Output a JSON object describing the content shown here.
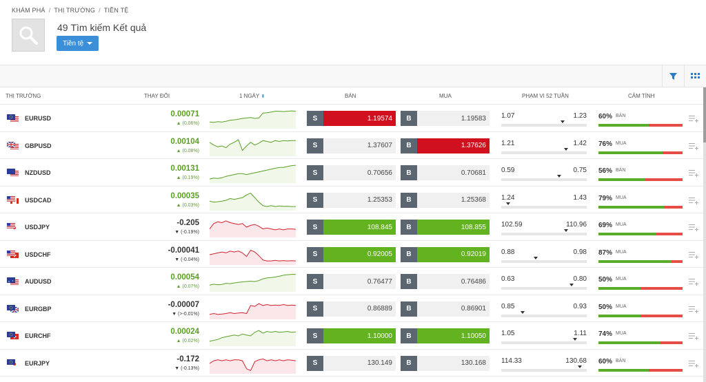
{
  "breadcrumb": [
    "KHÁM PHÁ",
    "THỊ TRƯỜNG",
    "TIỀN TỆ"
  ],
  "breadcrumb_sep": "/",
  "results": {
    "count": "49",
    "text": "Tìm kiếm Kết quả"
  },
  "filter_button": "Tiền tệ",
  "columns": {
    "market": "THỊ TRƯỜNG",
    "change": "THAY ĐỔI",
    "period": "1 NGÀY",
    "sell": "BÁN",
    "buy": "MUA",
    "range": "PHẠM VI 52 TUẦN",
    "sentiment": "CẢM TÍNH"
  },
  "sell_letter": "S",
  "buy_letter": "B",
  "colors": {
    "up": "#5aa024",
    "down": "#d3202e",
    "price_red": "#d0101e",
    "price_green": "#63b320",
    "accent": "#3b8fd8"
  },
  "rows": [
    {
      "symbol": "EURUSD",
      "flag": "eu-us",
      "change": "0.00071",
      "pct": "▲ (0.06%)",
      "dir": "up",
      "sell": "1.19574",
      "sell_state": "red",
      "buy": "1.19583",
      "buy_state": "",
      "low": "1.07",
      "high": "1.23",
      "range_pos": 0.72,
      "sentiment": "60%",
      "sentiment_label": "BÁN",
      "sentiment_fill": 0.6,
      "spark": [
        0.7,
        0.72,
        0.68,
        0.7,
        0.66,
        0.6,
        0.58,
        0.55,
        0.5,
        0.48,
        0.45,
        0.5,
        0.48,
        0.2,
        0.18,
        0.15,
        0.1,
        0.1,
        0.12,
        0.1,
        0.08,
        0.1
      ]
    },
    {
      "symbol": "GBPUSD",
      "flag": "gb-us",
      "change": "0.00104",
      "pct": "▲ (0.08%)",
      "dir": "up",
      "sell": "1.37607",
      "sell_state": "",
      "buy": "1.37626",
      "buy_state": "red",
      "low": "1.21",
      "high": "1.42",
      "range_pos": 0.76,
      "sentiment": "76%",
      "sentiment_label": "MUA",
      "sentiment_fill": 0.76,
      "spark": [
        0.3,
        0.45,
        0.55,
        0.5,
        0.6,
        0.4,
        0.3,
        0.15,
        0.75,
        0.5,
        0.3,
        0.45,
        0.35,
        0.2,
        0.25,
        0.3,
        0.2,
        0.25,
        0.2,
        0.22,
        0.2,
        0.2
      ]
    },
    {
      "symbol": "NZDUSD",
      "flag": "nz-us",
      "change": "0.00131",
      "pct": "▲ (0.19%)",
      "dir": "up",
      "sell": "0.70656",
      "sell_state": "",
      "buy": "0.70681",
      "buy_state": "",
      "low": "0.59",
      "high": "0.75",
      "range_pos": 0.68,
      "sentiment": "56%",
      "sentiment_label": "BÁN",
      "sentiment_fill": 0.56,
      "spark": [
        0.85,
        0.8,
        0.82,
        0.78,
        0.7,
        0.65,
        0.6,
        0.55,
        0.55,
        0.6,
        0.55,
        0.5,
        0.45,
        0.4,
        0.35,
        0.3,
        0.25,
        0.2,
        0.2,
        0.15,
        0.1,
        0.08
      ]
    },
    {
      "symbol": "USDCAD",
      "flag": "us-ca",
      "change": "0.00035",
      "pct": "▲ (0.03%)",
      "dir": "up",
      "sell": "1.25353",
      "sell_state": "",
      "buy": "1.25368",
      "buy_state": "",
      "low": "1.24",
      "high": "1.43",
      "range_pos": 0.08,
      "sentiment": "79%",
      "sentiment_label": "MUA",
      "sentiment_fill": 0.79,
      "spark": [
        0.55,
        0.6,
        0.58,
        0.55,
        0.5,
        0.4,
        0.45,
        0.4,
        0.35,
        0.2,
        0.1,
        0.35,
        0.6,
        0.8,
        0.85,
        0.8,
        0.85,
        0.82,
        0.84,
        0.83,
        0.85,
        0.85
      ]
    },
    {
      "symbol": "USDJPY",
      "flag": "us-jp",
      "change": "-0.205",
      "pct": "▼ (-0.19%)",
      "dir": "down",
      "sell": "108.845",
      "sell_state": "green",
      "buy": "108.855",
      "buy_state": "green",
      "low": "102.59",
      "high": "110.96",
      "range_pos": 0.76,
      "sentiment": "69%",
      "sentiment_label": "MUA",
      "sentiment_fill": 0.69,
      "spark": [
        0.6,
        0.3,
        0.2,
        0.25,
        0.15,
        0.25,
        0.3,
        0.35,
        0.3,
        0.5,
        0.4,
        0.35,
        0.45,
        0.6,
        0.55,
        0.6,
        0.65,
        0.6,
        0.65,
        0.6,
        0.6,
        0.62
      ]
    },
    {
      "symbol": "USDCHF",
      "flag": "us-ch",
      "change": "-0.00041",
      "pct": "▼ (-0.04%)",
      "dir": "down",
      "sell": "0.92005",
      "sell_state": "green",
      "buy": "0.92019",
      "buy_state": "green",
      "low": "0.88",
      "high": "0.98",
      "range_pos": 0.4,
      "sentiment": "87%",
      "sentiment_label": "MUA",
      "sentiment_fill": 0.87,
      "spark": [
        0.5,
        0.45,
        0.4,
        0.35,
        0.4,
        0.3,
        0.35,
        0.3,
        0.4,
        0.6,
        0.25,
        0.35,
        0.55,
        0.8,
        0.85,
        0.85,
        0.82,
        0.85,
        0.83,
        0.85,
        0.84,
        0.85
      ]
    },
    {
      "symbol": "AUDUSD",
      "flag": "au-us",
      "change": "0.00054",
      "pct": "▲ (0.07%)",
      "dir": "up",
      "sell": "0.76477",
      "sell_state": "",
      "buy": "0.76486",
      "buy_state": "",
      "low": "0.63",
      "high": "0.80",
      "range_pos": 0.82,
      "sentiment": "50%",
      "sentiment_label": "MUA",
      "sentiment_fill": 0.5,
      "spark": [
        0.7,
        0.65,
        0.68,
        0.66,
        0.6,
        0.62,
        0.58,
        0.55,
        0.52,
        0.5,
        0.48,
        0.5,
        0.45,
        0.35,
        0.3,
        0.28,
        0.25,
        0.2,
        0.15,
        0.12,
        0.1,
        0.1
      ]
    },
    {
      "symbol": "EURGBP",
      "flag": "eu-gb",
      "change": "-0.00007",
      "pct": "▼ (>-0.01%)",
      "dir": "down",
      "sell": "0.86889",
      "sell_state": "",
      "buy": "0.86901",
      "buy_state": "",
      "low": "0.85",
      "high": "0.93",
      "range_pos": 0.25,
      "sentiment": "50%",
      "sentiment_label": "MUA",
      "sentiment_fill": 0.5,
      "spark": [
        0.8,
        0.75,
        0.8,
        0.78,
        0.75,
        0.7,
        0.75,
        0.72,
        0.7,
        0.75,
        0.3,
        0.35,
        0.2,
        0.3,
        0.25,
        0.3,
        0.28,
        0.3,
        0.25,
        0.3,
        0.28,
        0.3
      ]
    },
    {
      "symbol": "EURCHF",
      "flag": "eu-ch",
      "change": "0.00024",
      "pct": "▲ (0.02%)",
      "dir": "up",
      "sell": "1.10000",
      "sell_state": "green",
      "buy": "1.10050",
      "buy_state": "green",
      "low": "1.05",
      "high": "1.11",
      "range_pos": 0.86,
      "sentiment": "74%",
      "sentiment_label": "MUA",
      "sentiment_fill": 0.74,
      "spark": [
        0.8,
        0.75,
        0.7,
        0.6,
        0.55,
        0.5,
        0.45,
        0.5,
        0.4,
        0.45,
        0.5,
        0.3,
        0.2,
        0.35,
        0.25,
        0.3,
        0.25,
        0.3,
        0.28,
        0.25,
        0.3,
        0.28
      ]
    },
    {
      "symbol": "EURJPY",
      "flag": "eu-jp",
      "change": "-0.172",
      "pct": "▼ (-0.13%)",
      "dir": "down",
      "sell": "130.149",
      "sell_state": "",
      "buy": "130.168",
      "buy_state": "",
      "low": "114.33",
      "high": "130.68",
      "range_pos": 0.92,
      "sentiment": "60%",
      "sentiment_label": "BÁN",
      "sentiment_fill": 0.6,
      "spark": [
        0.5,
        0.35,
        0.3,
        0.35,
        0.3,
        0.35,
        0.3,
        0.3,
        0.35,
        0.8,
        0.9,
        0.4,
        0.3,
        0.25,
        0.35,
        0.3,
        0.35,
        0.3,
        0.35,
        0.3,
        0.32,
        0.35
      ]
    }
  ]
}
